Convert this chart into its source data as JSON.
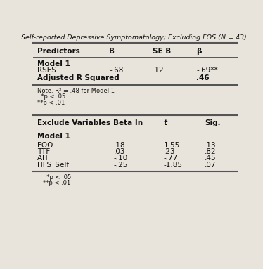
{
  "title": "Self-reported Depressive Symptomatology; Excluding FOS (N = 43).",
  "top_table": {
    "headers": [
      "Predictors",
      "B",
      "SE B",
      "β"
    ],
    "model1_label": "Model 1",
    "rows": [
      [
        "RSES",
        "-.68",
        ".12",
        "-.69**"
      ]
    ],
    "adj_r_squared_label": "Adjusted R Squared",
    "adj_r_squared_value": ".46",
    "note_lines": [
      "Note. R² = .48 for Model 1",
      "  *p < .05",
      "**p < .01"
    ]
  },
  "bottom_table": {
    "headers": [
      "Exclude Variables",
      "Beta In",
      "t",
      "Sig."
    ],
    "model1_label": "Model 1",
    "rows": [
      [
        "FOO",
        ".18",
        "1.55",
        ".13"
      ],
      [
        "TTF",
        ".03",
        ".23",
        ".82"
      ],
      [
        "ATF",
        "-.10",
        "-.77",
        ".45"
      ],
      [
        "HFS_Self",
        "-.25",
        "-1.85",
        ".07"
      ]
    ],
    "note_lines": [
      "  *p < .05",
      "**p < .01"
    ]
  },
  "bg_color": "#e8e4dc",
  "font_color": "#111111",
  "line_color": "#555555"
}
